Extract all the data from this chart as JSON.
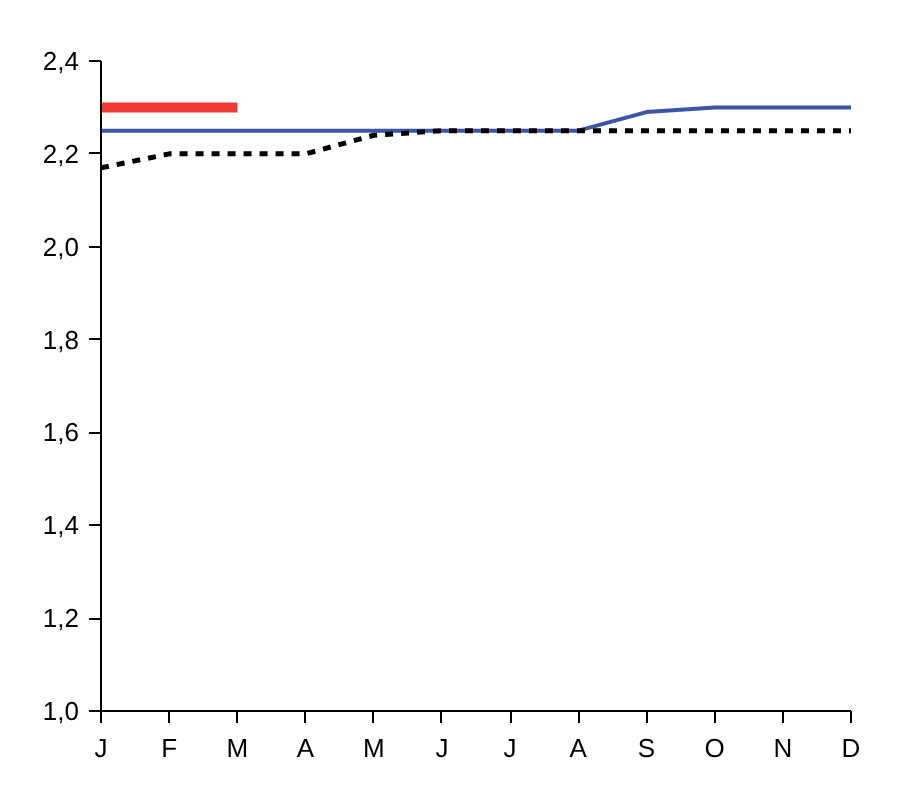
{
  "chart_data": {
    "type": "line",
    "categories": [
      "J",
      "F",
      "M",
      "A",
      "M",
      "J",
      "J",
      "A",
      "S",
      "O",
      "N",
      "D"
    ],
    "ylim": [
      1.0,
      2.4
    ],
    "yticks": [
      {
        "value": 1.0,
        "label": "1,0"
      },
      {
        "value": 1.2,
        "label": "1,2"
      },
      {
        "value": 1.4,
        "label": "1,4"
      },
      {
        "value": 1.6,
        "label": "1,6"
      },
      {
        "value": 1.8,
        "label": "1,8"
      },
      {
        "value": 2.0,
        "label": "2,0"
      },
      {
        "value": 2.2,
        "label": "2,2"
      },
      {
        "value": 2.4,
        "label": "2,4"
      }
    ],
    "grid": false,
    "series": [
      {
        "color": "#3c55a5",
        "line_style": "solid",
        "values": [
          2.25,
          2.25,
          2.25,
          2.25,
          2.25,
          2.25,
          2.25,
          2.25,
          2.29,
          2.3,
          2.3,
          2.3
        ]
      },
      {
        "color": "#000000",
        "line_style": "dashed",
        "values": [
          2.17,
          2.2,
          2.2,
          2.2,
          2.24,
          2.25,
          2.25,
          2.25,
          2.25,
          2.25,
          2.25,
          2.25
        ]
      },
      {
        "color": "#ee3a32",
        "line_style": "solid",
        "values": [
          2.3,
          2.3,
          2.3,
          null,
          null,
          null,
          null,
          null,
          null,
          null,
          null,
          null
        ]
      }
    ]
  }
}
